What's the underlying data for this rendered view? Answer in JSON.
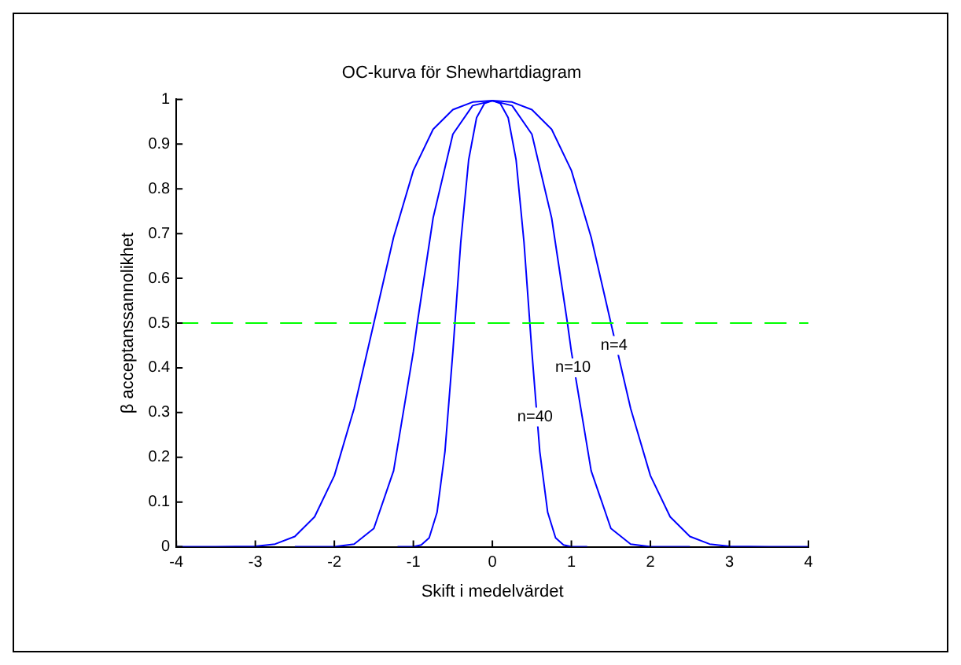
{
  "chart_data": {
    "type": "line",
    "title": "OC-kurva för Shewhartdiagram",
    "xlabel": "Skift i medelvärdet",
    "ylabel": "β acceptanssannolikhet",
    "xlim": [
      -4,
      4
    ],
    "xticks": [
      -4,
      -3,
      -2,
      -1,
      0,
      1,
      2,
      3,
      4
    ],
    "ylim": [
      0,
      1
    ],
    "yticks": [
      0,
      0.1,
      0.2,
      0.3,
      0.4,
      0.5,
      0.6,
      0.7,
      0.8,
      0.9,
      1
    ],
    "grid": false,
    "legend": false,
    "marker": "none",
    "line_style": "solid",
    "series": [
      {
        "color": "#0000ff",
        "x": [
          -4,
          -3.5,
          -3,
          -2.75,
          -2.5,
          -2.25,
          -2,
          -1.75,
          -1.5,
          -1.25,
          -1,
          -0.75,
          -0.5,
          -0.25,
          0,
          0.25,
          0.5,
          0.75,
          1,
          1.25,
          1.5,
          1.75,
          2,
          2.25,
          2.5,
          2.75,
          3,
          3.5,
          4
        ],
        "values": [
          0,
          0,
          0.001,
          0.006,
          0.023,
          0.067,
          0.159,
          0.309,
          0.5,
          0.692,
          0.841,
          0.933,
          0.977,
          0.994,
          0.997,
          0.994,
          0.977,
          0.933,
          0.841,
          0.692,
          0.5,
          0.309,
          0.159,
          0.067,
          0.023,
          0.006,
          0.001,
          0,
          0
        ]
      },
      {
        "color": "#0000ff",
        "x": [
          -2.5,
          -2,
          -1.75,
          -1.5,
          -1.25,
          -1,
          -0.95,
          -0.75,
          -0.5,
          -0.25,
          0,
          0.25,
          0.5,
          0.75,
          0.95,
          1,
          1.25,
          1.5,
          1.75,
          2,
          2.5
        ],
        "values": [
          0,
          0,
          0.006,
          0.041,
          0.17,
          0.436,
          0.5,
          0.735,
          0.922,
          0.986,
          0.997,
          0.986,
          0.922,
          0.735,
          0.5,
          0.436,
          0.17,
          0.041,
          0.006,
          0,
          0
        ]
      },
      {
        "color": "#0000ff",
        "x": [
          -1.2,
          -1,
          -0.9,
          -0.8,
          -0.7,
          -0.6,
          -0.5,
          -0.4,
          -0.3,
          -0.2,
          -0.1,
          0,
          0.1,
          0.2,
          0.3,
          0.4,
          0.5,
          0.6,
          0.7,
          0.8,
          0.9,
          1,
          1.2
        ],
        "values": [
          0,
          0,
          0.004,
          0.02,
          0.077,
          0.213,
          0.436,
          0.681,
          0.865,
          0.959,
          0.991,
          0.997,
          0.991,
          0.959,
          0.865,
          0.681,
          0.436,
          0.213,
          0.077,
          0.02,
          0.004,
          0,
          0
        ]
      }
    ],
    "ref_lines": [
      {
        "axis": "y",
        "value": 0.5,
        "color": "#00ff00",
        "line_style": "dashed"
      }
    ],
    "annotations": [
      {
        "text": "n=4",
        "x": 1.54,
        "y": 0.45
      },
      {
        "text": "n=10",
        "x": 1.02,
        "y": 0.4
      },
      {
        "text": "n=40",
        "x": 0.54,
        "y": 0.29
      }
    ]
  }
}
